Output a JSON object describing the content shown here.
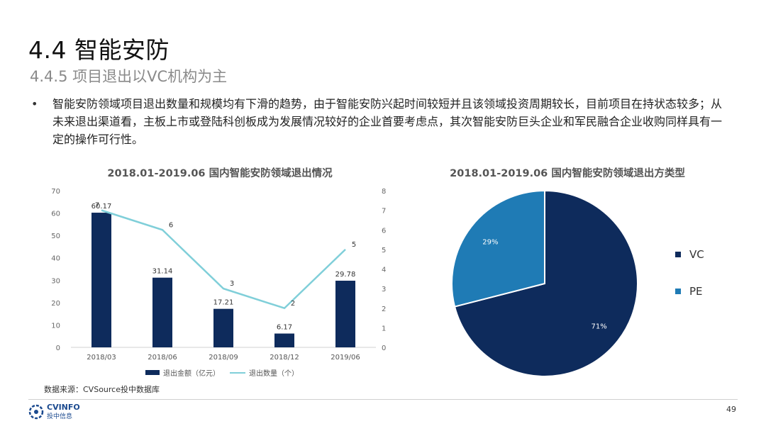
{
  "header": {
    "title": "4.4 智能安防",
    "subtitle": "4.4.5 项目退出以VC机构为主"
  },
  "bullet": {
    "mark": "•",
    "text": "智能安防领域项目退出数量和规模均有下滑的趋势，由于智能安防兴起时间较短并且该领域投资周期较长，目前项目在持状态较多；从未来退出渠道看，主板上市或登陆科创板成为发展情况较好的企业首要考虑点，其次智能安防巨头企业和军民融合企业收购同样具有一定的操作可行性。"
  },
  "chart_data": [
    {
      "type": "bar",
      "title": "2018.01-2019.06 国内智能安防领域退出情况",
      "categories": [
        "2018/03",
        "2018/06",
        "2018/09",
        "2018/12",
        "2019/06"
      ],
      "series": [
        {
          "name": "退出金额（亿元）",
          "type": "bar",
          "axis": "left",
          "values": [
            60.17,
            31.14,
            17.21,
            6.17,
            29.78
          ]
        },
        {
          "name": "退出数量（个）",
          "type": "line",
          "axis": "right",
          "values": [
            7,
            6,
            3,
            2,
            5
          ]
        }
      ],
      "ylim": [
        0,
        70
      ],
      "yticks": [
        0,
        10,
        20,
        30,
        40,
        50,
        60,
        70
      ],
      "y2lim": [
        0,
        8
      ],
      "y2ticks": [
        0,
        1,
        2,
        3,
        4,
        5,
        6,
        7,
        8
      ],
      "colors": {
        "bar": "#0e2b5c",
        "line": "#80cfd9"
      },
      "grid": false,
      "legend": "bottom"
    },
    {
      "type": "pie",
      "title": "2018.01-2019.06 国内智能安防领域退出方类型",
      "slices": [
        {
          "label": "VC",
          "value": 71,
          "text": "71%",
          "color": "#0e2b5c"
        },
        {
          "label": "PE",
          "value": 29,
          "text": "29%",
          "color": "#1f7bb5"
        }
      ],
      "legend": "right"
    }
  ],
  "footer": {
    "source": "数据来源：CVSource投中数据库",
    "logo_text": "CVINFO",
    "logo_sub": "投中信息",
    "page_number": "49"
  }
}
